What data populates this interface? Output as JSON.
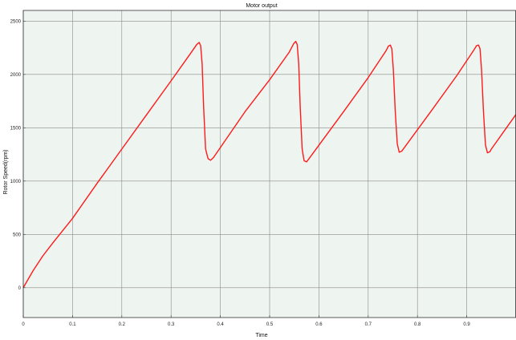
{
  "chart_data": {
    "type": "line",
    "title": "Motor output",
    "xlabel": "Time",
    "ylabel": "Rotor Speed(rpm)",
    "xlim": [
      0,
      1
    ],
    "ylim": [
      -280,
      2600
    ],
    "xticks": [
      0,
      0.1,
      0.2,
      0.3,
      0.4,
      0.5,
      0.6,
      0.7,
      0.8,
      0.9
    ],
    "xtick_labels": [
      "0",
      "0.1",
      "0.2",
      "0.3",
      "0.4",
      "0.5",
      "0.6",
      "0.7",
      "0.8",
      "0.9"
    ],
    "yticks": [
      0,
      500,
      1000,
      1500,
      2000,
      2500
    ],
    "ytick_labels": [
      "0",
      "500",
      "1000",
      "1500",
      "2000",
      "2500"
    ],
    "grid": true,
    "colors": {
      "background": "#eef4ef",
      "grid": "#8a8a8a",
      "line": "#ff1a1a",
      "frame": "#333333"
    },
    "series": [
      {
        "color": "#ff1a1a",
        "x": [
          0,
          0.01,
          0.02,
          0.04,
          0.06,
          0.1,
          0.15,
          0.2,
          0.25,
          0.3,
          0.34,
          0.352,
          0.357,
          0.36,
          0.363,
          0.366,
          0.37,
          0.375,
          0.38,
          0.386,
          0.45,
          0.5,
          0.54,
          0.549,
          0.553,
          0.556,
          0.559,
          0.562,
          0.566,
          0.57,
          0.575,
          0.58,
          0.65,
          0.7,
          0.736,
          0.741,
          0.745,
          0.748,
          0.751,
          0.755,
          0.759,
          0.763,
          0.768,
          0.83,
          0.88,
          0.914,
          0.92,
          0.924,
          0.927,
          0.93,
          0.934,
          0.938,
          0.942,
          0.947,
          0.95,
          1.0
        ],
        "y": [
          0,
          80,
          160,
          300,
          420,
          650,
          980,
          1300,
          1620,
          1940,
          2200,
          2280,
          2300,
          2270,
          2100,
          1700,
          1300,
          1210,
          1195,
          1220,
          1650,
          1950,
          2210,
          2290,
          2310,
          2280,
          2100,
          1700,
          1300,
          1190,
          1180,
          1210,
          1650,
          1970,
          2220,
          2265,
          2275,
          2240,
          2050,
          1650,
          1350,
          1270,
          1280,
          1670,
          1990,
          2225,
          2270,
          2275,
          2240,
          2050,
          1650,
          1340,
          1265,
          1275,
          1300,
          1625
        ]
      }
    ]
  }
}
